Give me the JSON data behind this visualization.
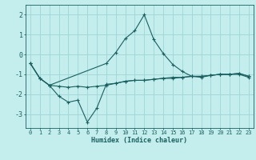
{
  "xlabel": "Humidex (Indice chaleur)",
  "bg_color": "#c4eded",
  "grid_color": "#a0d4d4",
  "line_color": "#1a6060",
  "xlim": [
    -0.5,
    23.5
  ],
  "ylim": [
    -3.7,
    2.5
  ],
  "yticks": [
    -3,
    -2,
    -1,
    0,
    1,
    2
  ],
  "xticks": [
    0,
    1,
    2,
    3,
    4,
    5,
    6,
    7,
    8,
    9,
    10,
    11,
    12,
    13,
    14,
    15,
    16,
    17,
    18,
    19,
    20,
    21,
    22,
    23
  ],
  "curve1_x": [
    0,
    1,
    2,
    3,
    4,
    5,
    6,
    7,
    8,
    9,
    10,
    11,
    12,
    13,
    14,
    15,
    16,
    17,
    18,
    19,
    20,
    21,
    22,
    23
  ],
  "curve1_y": [
    -0.45,
    -1.2,
    -1.55,
    -2.1,
    -2.4,
    -2.3,
    -3.4,
    -2.7,
    -1.5,
    -1.45,
    -1.35,
    -1.3,
    -1.3,
    -1.25,
    -1.2,
    -1.2,
    -1.15,
    -1.1,
    -1.1,
    -1.05,
    -1.0,
    -1.0,
    -0.95,
    -1.1
  ],
  "curve2_x": [
    0,
    1,
    2,
    3,
    4,
    5,
    6,
    7,
    8,
    9,
    10,
    11,
    12,
    13,
    14,
    15,
    16,
    17,
    18,
    19,
    20,
    21,
    22,
    23
  ],
  "curve2_y": [
    -0.45,
    -1.2,
    -1.55,
    -1.6,
    -1.65,
    -1.6,
    -1.65,
    -1.6,
    -1.55,
    -1.45,
    -1.35,
    -1.3,
    -1.3,
    -1.25,
    -1.2,
    -1.15,
    -1.15,
    -1.1,
    -1.1,
    -1.05,
    -1.0,
    -1.0,
    -0.95,
    -1.1
  ],
  "curve3_x": [
    0,
    1,
    2,
    8,
    9,
    10,
    11,
    12,
    13,
    14,
    15,
    16,
    17,
    18,
    19,
    20,
    21,
    22,
    23
  ],
  "curve3_y": [
    -0.45,
    -1.2,
    -1.55,
    -0.45,
    0.1,
    0.8,
    1.2,
    2.0,
    0.75,
    0.05,
    -0.5,
    -0.85,
    -1.1,
    -1.15,
    -1.05,
    -1.0,
    -1.0,
    -1.0,
    -1.15
  ]
}
